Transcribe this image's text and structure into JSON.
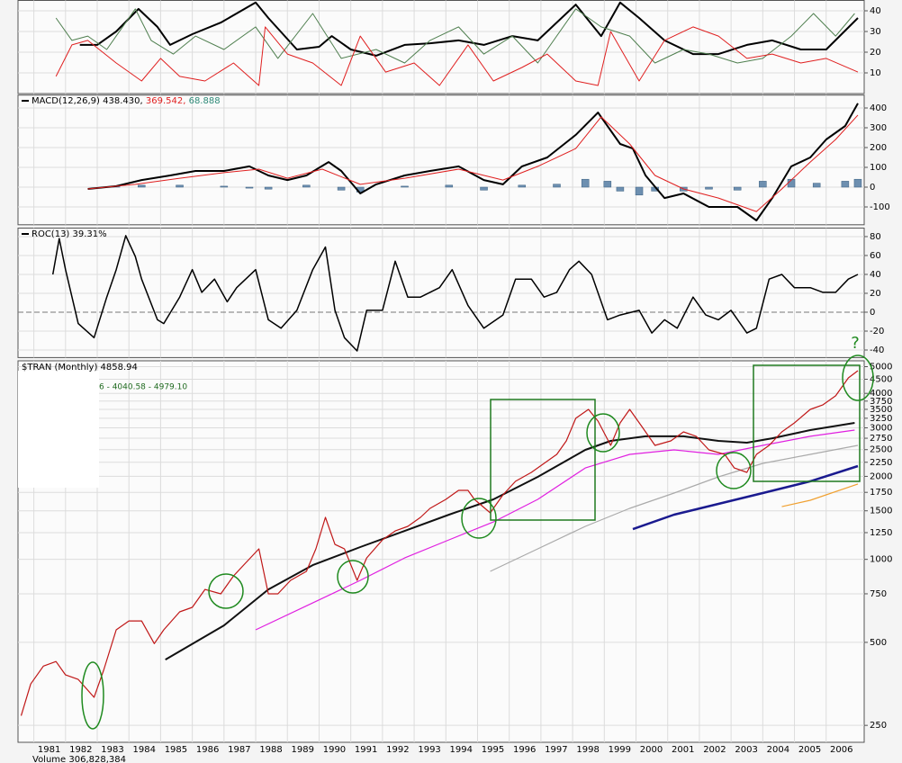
{
  "chart_data": [
    {
      "type": "line",
      "ylim": [
        0,
        45
      ],
      "yticks": [
        10,
        20,
        30,
        40
      ],
      "grid": true,
      "series": [
        {
          "color": "#000000",
          "width": 2,
          "x": [
            1982.45,
            1983.0,
            1983.6,
            1984.3,
            1984.9,
            1985.3,
            1986.0,
            1986.9,
            1988.0,
            1988.4,
            1989.3,
            1990.0,
            1990.4,
            1991.0,
            1991.8,
            1992.7,
            1993.5,
            1994.4,
            1995.2,
            1996.1,
            1996.9,
            1998.1,
            1998.9,
            1999.5,
            2000.1,
            2000.9,
            2001.8,
            2002.6,
            2003.5,
            2004.3,
            2005.2,
            2006.0,
            2007.0
          ],
          "values": [
            23.5,
            23.5,
            30,
            40.9,
            32.2,
            23.5,
            28.7,
            34.3,
            44,
            36.5,
            21.3,
            22.6,
            27.8,
            21.3,
            18.3,
            23.5,
            24.3,
            25.7,
            23.5,
            27.8,
            25.7,
            43,
            27.8,
            44,
            36.5,
            25.7,
            19.1,
            19.1,
            23.5,
            25.7,
            21.3,
            21.3,
            36.5
          ]
        },
        {
          "color": "#4f7f4f",
          "width": 1,
          "x": [
            1981.7,
            1982.2,
            1982.7,
            1983.3,
            1984.2,
            1984.7,
            1985.4,
            1986.1,
            1987.0,
            1988.0,
            1988.7,
            1989.8,
            1990.7,
            1991.8,
            1992.7,
            1993.5,
            1994.4,
            1995.2,
            1996.1,
            1996.9,
            1998.1,
            1998.9,
            1999.8,
            2000.6,
            2001.5,
            2002.3,
            2003.2,
            2004.0,
            2004.9,
            2005.6,
            2006.3,
            2006.9
          ],
          "values": [
            36.5,
            25.7,
            27.8,
            21.3,
            40.9,
            25.7,
            19.1,
            27.8,
            21.3,
            32.2,
            17,
            38.7,
            17,
            21.3,
            14.8,
            25.7,
            32.2,
            19.1,
            27.8,
            14.8,
            40.9,
            32.2,
            27.8,
            14.8,
            21.3,
            19.1,
            14.8,
            17,
            27.8,
            38.7,
            27.8,
            38.7
          ]
        },
        {
          "color": "#e02020",
          "width": 1,
          "x": [
            1981.7,
            1982.2,
            1982.7,
            1983.6,
            1984.4,
            1985.0,
            1985.6,
            1986.4,
            1987.3,
            1988.1,
            1988.3,
            1989.0,
            1989.8,
            1990.7,
            1991.3,
            1992.1,
            1993.0,
            1993.8,
            1994.7,
            1995.5,
            1996.4,
            1997.2,
            1998.1,
            1998.8,
            1999.2,
            2000.1,
            2000.9,
            2001.8,
            2002.6,
            2003.5,
            2004.3,
            2005.2,
            2006.0,
            2007.0
          ],
          "values": [
            8.3,
            23.5,
            25.7,
            14.8,
            6.1,
            17,
            8.3,
            6.1,
            14.8,
            3.9,
            32.2,
            19.1,
            14.8,
            3.9,
            27.8,
            10.4,
            14.8,
            3.9,
            23.5,
            6.1,
            12.6,
            19.1,
            6.1,
            3.9,
            30,
            6.1,
            25.7,
            32.2,
            27.8,
            17,
            19.1,
            14.8,
            17,
            10.4
          ]
        }
      ]
    },
    {
      "type": "line",
      "legend": [
        "MACD(12,26,9) 438.430,",
        "369.542,",
        "68.888"
      ],
      "ylim": [
        -190,
        465
      ],
      "yticks": [
        -100,
        0,
        100,
        200,
        300,
        400
      ],
      "grid": true,
      "series": [
        {
          "type": "bar",
          "color": "#6d8fb0",
          "x": [
            1983.6,
            1984.4,
            1985.6,
            1987.0,
            1987.8,
            1988.4,
            1989.6,
            1990.7,
            1991.3,
            1992.7,
            1994.1,
            1995.2,
            1996.4,
            1997.5,
            1998.4,
            1999.1,
            1999.5,
            2000.1,
            2000.6,
            2001.5,
            2002.3,
            2003.2,
            2004.0,
            2004.9,
            2005.7,
            2006.6,
            2007.0
          ],
          "values": [
            5,
            10,
            10,
            5,
            -5,
            -10,
            10,
            -15,
            -25,
            5,
            10,
            -15,
            10,
            15,
            40,
            30,
            -20,
            -40,
            -20,
            -20,
            -10,
            -15,
            30,
            40,
            20,
            30,
            40
          ]
        },
        {
          "color": "#000000",
          "width": 2,
          "x": [
            1982.7,
            1983.6,
            1984.4,
            1985.3,
            1986.1,
            1987.0,
            1987.8,
            1988.4,
            1989.0,
            1989.6,
            1990.3,
            1990.7,
            1991.3,
            1991.8,
            1992.7,
            1993.5,
            1994.4,
            1995.2,
            1995.8,
            1996.4,
            1997.2,
            1998.1,
            1998.8,
            1999.5,
            1999.9,
            2000.3,
            2000.9,
            2001.5,
            2002.3,
            2003.2,
            2003.8,
            2004.3,
            2004.9,
            2005.5,
            2006.0,
            2006.6,
            2007.0
          ],
          "values": [
            -9,
            5,
            36,
            59,
            82,
            82,
            105,
            59,
            36,
            59,
            127,
            82,
            -32,
            14,
            59,
            82,
            105,
            36,
            14,
            105,
            150,
            264,
            377,
            218,
            195,
            59,
            -55,
            -32,
            -100,
            -100,
            -168,
            -55,
            105,
            150,
            241,
            309,
            423
          ]
        },
        {
          "color": "#e02020",
          "width": 1,
          "x": [
            1982.7,
            1984.2,
            1985.6,
            1987.0,
            1988.1,
            1989.0,
            1990.1,
            1991.3,
            1992.7,
            1994.4,
            1995.8,
            1996.9,
            1998.1,
            1998.9,
            1999.8,
            2000.6,
            2001.5,
            2002.6,
            2003.8,
            2004.6,
            2005.5,
            2006.3,
            2007.0
          ],
          "values": [
            -9,
            14,
            45,
            73,
            91,
            45,
            91,
            14,
            45,
            91,
            36,
            105,
            195,
            355,
            218,
            59,
            -9,
            -55,
            -123,
            -9,
            127,
            241,
            364
          ]
        }
      ]
    },
    {
      "type": "line",
      "legend": [
        "ROC(13) 39.31%"
      ],
      "zero_line": true,
      "ylim": [
        -48,
        89
      ],
      "yticks": [
        -40,
        -20,
        0,
        20,
        40,
        60,
        80
      ],
      "grid": true,
      "series": [
        {
          "color": "#000000",
          "width": 1.5,
          "x": [
            1981.6,
            1981.8,
            1982.0,
            1982.4,
            1982.9,
            1983.3,
            1983.6,
            1983.9,
            1984.2,
            1984.4,
            1984.9,
            1985.1,
            1985.6,
            1986.0,
            1986.3,
            1986.7,
            1987.1,
            1987.4,
            1988.0,
            1988.4,
            1988.8,
            1989.3,
            1989.8,
            1990.2,
            1990.5,
            1990.8,
            1991.2,
            1991.5,
            1992.0,
            1992.4,
            1992.8,
            1993.2,
            1993.8,
            1994.2,
            1994.7,
            1995.2,
            1995.8,
            1996.2,
            1996.7,
            1997.1,
            1997.5,
            1997.9,
            1998.2,
            1998.6,
            1999.1,
            1999.5,
            2000.1,
            2000.5,
            2000.9,
            2001.3,
            2001.8,
            2002.2,
            2002.6,
            2003.0,
            2003.5,
            2003.8,
            2004.2,
            2004.6,
            2005.0,
            2005.5,
            2005.9,
            2006.3,
            2006.7,
            2007.0
          ],
          "values": [
            40,
            78,
            45,
            -12,
            -27,
            16,
            45,
            81,
            59,
            35,
            -8,
            -12,
            16,
            45,
            21,
            35,
            11,
            26,
            45,
            -8,
            -17,
            2,
            45,
            69,
            2,
            -27,
            -41,
            2,
            2,
            54,
            16,
            16,
            26,
            45,
            7,
            -17,
            -3,
            35,
            35,
            16,
            21,
            45,
            54,
            40,
            -8,
            -3,
            2,
            -22,
            -8,
            -17,
            16,
            -3,
            -8,
            2,
            -22,
            -17,
            35,
            40,
            26,
            26,
            21,
            21,
            35,
            40
          ]
        }
      ]
    },
    {
      "type": "line",
      "title": "$TRAN (Monthly) 4858.94",
      "subtitle": "6 - 4040.58 - 4979.10",
      "annotation": "?",
      "log_scale": true,
      "grid": true,
      "xlim": [
        1980.5,
        2007.2
      ],
      "xticks": [
        1981,
        1982,
        1983,
        1984,
        1985,
        1986,
        1987,
        1988,
        1989,
        1990,
        1991,
        1992,
        1993,
        1994,
        1995,
        1996,
        1997,
        1998,
        1999,
        2000,
        2001,
        2002,
        2003,
        2004,
        2005,
        2006
      ],
      "ylim": [
        217,
        5250
      ],
      "yticks": [
        250,
        500,
        750,
        1000,
        1250,
        1500,
        1750,
        2000,
        2250,
        2500,
        2750,
        3000,
        3250,
        3500,
        3750,
        4000,
        4500,
        5000
      ],
      "series": [
        {
          "color": "#aaaaaa",
          "width": 1.2,
          "x": [
            1995.4,
            1996.9,
            1998.4,
            1999.8,
            2001.2,
            2002.6,
            2004.0,
            2005.5,
            2007.0
          ],
          "values": [
            905,
            1092,
            1317,
            1531,
            1740,
            1992,
            2229,
            2403,
            2590
          ]
        },
        {
          "color": "#1a1a8f",
          "width": 2.5,
          "x": [
            1999.9,
            2001.2,
            2002.6,
            2004.0,
            2005.5,
            2007.0
          ],
          "values": [
            1287,
            1452,
            1589,
            1740,
            1919,
            2180
          ]
        },
        {
          "color": "#f0a030",
          "width": 1.2,
          "x": [
            2004.6,
            2005.5,
            2007.0
          ],
          "values": [
            1553,
            1638,
            1876
          ]
        },
        {
          "color": "#e020e0",
          "width": 1.2,
          "x": [
            1988.0,
            1989.8,
            1991.3,
            1992.7,
            1994.1,
            1995.5,
            1996.9,
            1998.4,
            1999.8,
            2001.2,
            2002.6,
            2004.0,
            2005.5,
            2006.9
          ],
          "values": [
            555,
            695,
            839,
            1012,
            1177,
            1367,
            1650,
            2146,
            2403,
            2495,
            2403,
            2590,
            2795,
            2944
          ]
        },
        {
          "color": "#111111",
          "width": 2,
          "x": [
            1985.15,
            1987.0,
            1988.4,
            1989.8,
            1991.3,
            1992.7,
            1994.1,
            1995.5,
            1996.9,
            1998.4,
            1999.2,
            2000.3,
            2001.5,
            2002.6,
            2003.5,
            2004.3,
            2005.5,
            2006.9
          ],
          "values": [
            433,
            576,
            778,
            953,
            1108,
            1268,
            1452,
            1650,
            1992,
            2495,
            2690,
            2795,
            2795,
            2690,
            2650,
            2750,
            2944,
            3125
          ]
        },
        {
          "color": "#c01818",
          "width": 1.2,
          "x": [
            1980.6,
            1980.9,
            1981.3,
            1981.7,
            1982.0,
            1982.4,
            1982.9,
            1983.2,
            1983.6,
            1984.0,
            1984.4,
            1984.8,
            1985.1,
            1985.6,
            1986.0,
            1986.4,
            1986.9,
            1987.3,
            1987.7,
            1988.1,
            1988.4,
            1988.7,
            1989.1,
            1989.6,
            1989.9,
            1990.2,
            1990.5,
            1990.8,
            1991.2,
            1991.5,
            1992.0,
            1992.4,
            1992.8,
            1993.2,
            1993.5,
            1994.0,
            1994.4,
            1994.7,
            1994.9,
            1995.4,
            1995.8,
            1996.2,
            1996.7,
            1997.1,
            1997.5,
            1997.8,
            1998.1,
            1998.5,
            1998.8,
            1999.2,
            1999.5,
            1999.8,
            2000.2,
            2000.6,
            2001.1,
            2001.5,
            2001.9,
            2002.3,
            2002.8,
            2003.1,
            2003.5,
            2003.8,
            2004.2,
            2004.6,
            2005.0,
            2005.5,
            2005.9,
            2006.3,
            2006.7,
            2007.0
          ],
          "values": [
            271,
            353,
            410,
            426,
            381,
            367,
            316,
            396,
            555,
            598,
            598,
            495,
            555,
            645,
            670,
            778,
            750,
            871,
            975,
            1092,
            750,
            750,
            839,
            905,
            1092,
            1420,
            1133,
            1092,
            839,
            1012,
            1177,
            1268,
            1317,
            1420,
            1531,
            1650,
            1779,
            1779,
            1650,
            1474,
            1713,
            1919,
            2068,
            2229,
            2403,
            2690,
            3247,
            3500,
            3173,
            2590,
            3125,
            3500,
            3012,
            2590,
            2690,
            2900,
            2795,
            2495,
            2403,
            2146,
            2068,
            2403,
            2590,
            2900,
            3125,
            3500,
            3635,
            3918,
            4550,
            4835
          ]
        }
      ]
    }
  ],
  "footer": {
    "volume_label": "Volume 306,828,384"
  }
}
